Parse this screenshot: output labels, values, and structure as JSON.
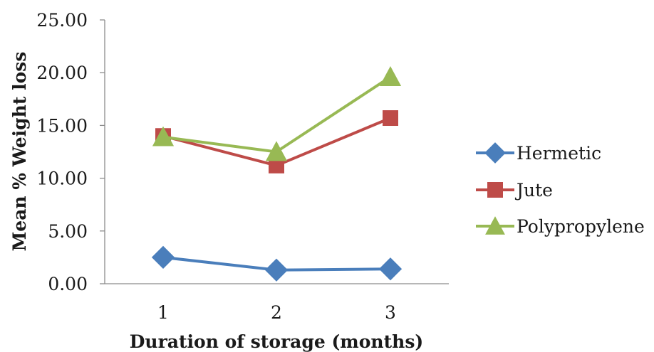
{
  "chart_data": {
    "type": "line",
    "title": "",
    "xlabel": "Duration of storage (months)",
    "ylabel": "Mean %  Weight loss",
    "categories": [
      "1",
      "2",
      "3"
    ],
    "ylim": [
      0,
      25
    ],
    "yticks": [
      "0.00",
      "5.00",
      "10.00",
      "15.00",
      "20.00",
      "25.00"
    ],
    "grid": false,
    "legend_position": "right",
    "series": [
      {
        "name": "Hermetic",
        "values": [
          2.5,
          1.3,
          1.4
        ],
        "color": "#4a7ebb",
        "marker": "diamond"
      },
      {
        "name": "Jute",
        "values": [
          14.0,
          11.2,
          15.7
        ],
        "color": "#be4b48",
        "marker": "square"
      },
      {
        "name": "Polypropylene",
        "values": [
          13.9,
          12.5,
          19.6
        ],
        "color": "#98b954",
        "marker": "triangle"
      }
    ]
  }
}
